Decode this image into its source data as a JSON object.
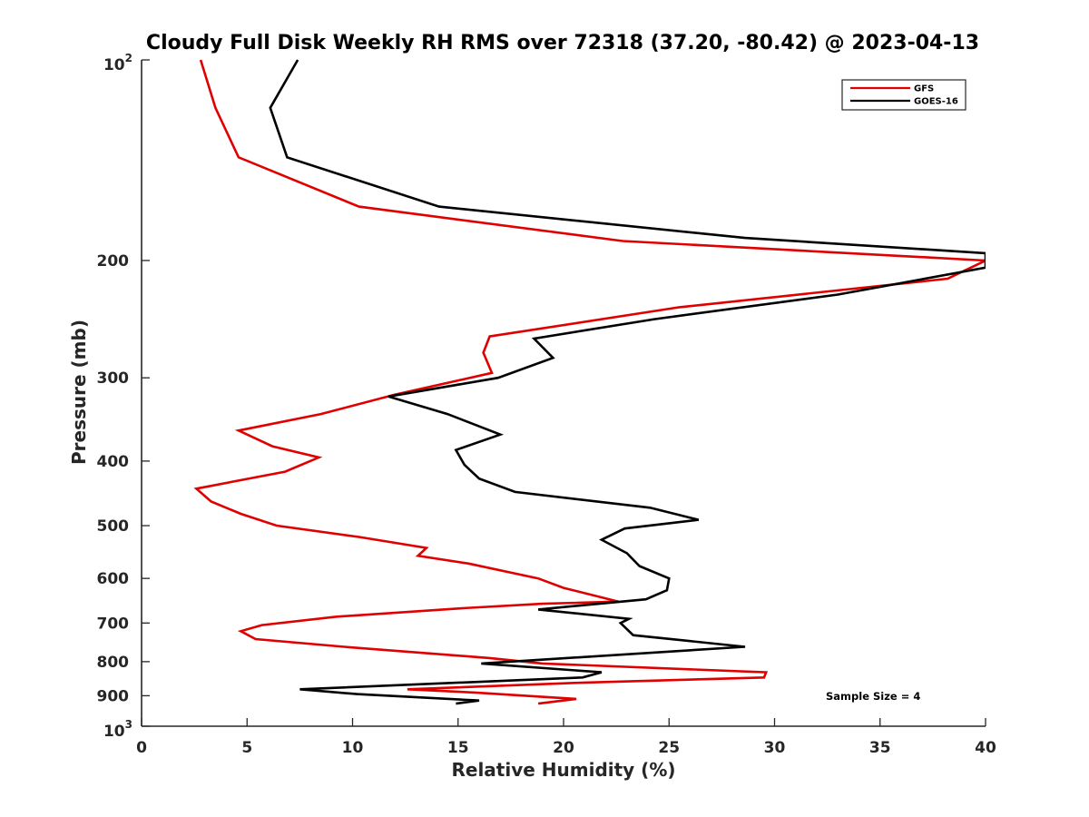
{
  "chart_data": {
    "type": "line",
    "title": "Cloudy Full Disk Weekly RH RMS over 72318 (37.20, -80.42) @ 2023-04-13",
    "xlabel": "Relative Humidity (%)",
    "ylabel": "Pressure (mb)",
    "xlim": [
      0,
      40
    ],
    "ylim": [
      100,
      1000
    ],
    "yscale": "log",
    "y_inverted": true,
    "grid": false,
    "legend_position": "top-right",
    "x_ticks": [
      0,
      5,
      10,
      15,
      20,
      25,
      30,
      35,
      40
    ],
    "y_ticks": [
      {
        "value": 100,
        "base": "10",
        "exp": "2"
      },
      {
        "value": 200,
        "label": "200"
      },
      {
        "value": 300,
        "label": "300"
      },
      {
        "value": 400,
        "label": "400"
      },
      {
        "value": 500,
        "label": "500"
      },
      {
        "value": 600,
        "label": "600"
      },
      {
        "value": 700,
        "label": "700"
      },
      {
        "value": 800,
        "label": "800"
      },
      {
        "value": 900,
        "label": "900"
      },
      {
        "value": 1000,
        "base": "10",
        "exp": "3"
      }
    ],
    "series": [
      {
        "name": "GFS",
        "color": "#e00000",
        "points": [
          [
            2.8,
            100
          ],
          [
            3.5,
            118
          ],
          [
            4.6,
            140
          ],
          [
            10.3,
            166
          ],
          [
            22.8,
            187
          ],
          [
            40.0,
            200
          ],
          [
            38.2,
            213
          ],
          [
            25.5,
            235
          ],
          [
            16.5,
            260
          ],
          [
            16.2,
            275
          ],
          [
            16.6,
            295
          ],
          [
            12.0,
            318
          ],
          [
            8.5,
            340
          ],
          [
            4.6,
            360
          ],
          [
            6.2,
            380
          ],
          [
            8.4,
            395
          ],
          [
            6.8,
            415
          ],
          [
            2.6,
            440
          ],
          [
            3.3,
            460
          ],
          [
            4.7,
            480
          ],
          [
            6.4,
            500
          ],
          [
            10.3,
            520
          ],
          [
            13.5,
            540
          ],
          [
            13.1,
            555
          ],
          [
            15.5,
            570
          ],
          [
            18.8,
            600
          ],
          [
            20.0,
            620
          ],
          [
            22.6,
            650
          ],
          [
            19.0,
            655
          ],
          [
            15.2,
            665
          ],
          [
            9.2,
            685
          ],
          [
            5.7,
            705
          ],
          [
            4.7,
            720
          ],
          [
            5.4,
            740
          ],
          [
            9.6,
            760
          ],
          [
            16.5,
            790
          ],
          [
            19.0,
            805
          ],
          [
            29.6,
            830
          ],
          [
            29.5,
            845
          ],
          [
            21.0,
            860
          ],
          [
            12.6,
            880
          ],
          [
            15.8,
            890
          ],
          [
            18.2,
            900
          ],
          [
            20.6,
            910
          ],
          [
            18.8,
            925
          ]
        ]
      },
      {
        "name": "GOES-16",
        "color": "#000000",
        "points": [
          [
            7.4,
            100
          ],
          [
            6.1,
            118
          ],
          [
            6.9,
            140
          ],
          [
            14.1,
            166
          ],
          [
            28.6,
            185
          ],
          [
            40.0,
            195
          ],
          [
            40.0,
            205
          ],
          [
            33.0,
            225
          ],
          [
            24.3,
            245
          ],
          [
            18.6,
            262
          ],
          [
            19.5,
            280
          ],
          [
            16.9,
            300
          ],
          [
            11.7,
            320
          ],
          [
            14.5,
            340
          ],
          [
            17.0,
            365
          ],
          [
            14.9,
            385
          ],
          [
            15.3,
            405
          ],
          [
            16.0,
            425
          ],
          [
            17.7,
            445
          ],
          [
            24.1,
            470
          ],
          [
            26.4,
            490
          ],
          [
            22.9,
            505
          ],
          [
            21.8,
            525
          ],
          [
            23.0,
            550
          ],
          [
            23.6,
            575
          ],
          [
            25.0,
            600
          ],
          [
            24.9,
            625
          ],
          [
            23.9,
            645
          ],
          [
            18.8,
            668
          ],
          [
            23.1,
            690
          ],
          [
            22.7,
            700
          ],
          [
            23.0,
            715
          ],
          [
            23.3,
            730
          ],
          [
            28.6,
            760
          ],
          [
            16.1,
            805
          ],
          [
            21.8,
            830
          ],
          [
            20.9,
            845
          ],
          [
            7.5,
            880
          ],
          [
            10.2,
            895
          ],
          [
            16.0,
            915
          ],
          [
            14.9,
            925
          ]
        ]
      }
    ],
    "annotations": [
      {
        "text": "Sample Size = 4"
      }
    ]
  }
}
